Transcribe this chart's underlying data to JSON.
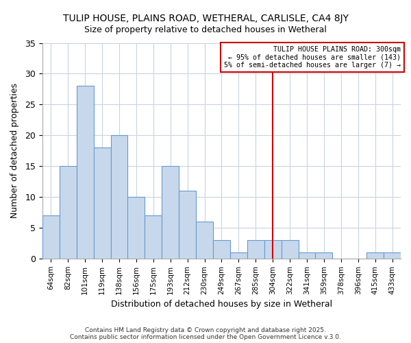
{
  "title": "TULIP HOUSE, PLAINS ROAD, WETHERAL, CARLISLE, CA4 8JY",
  "subtitle": "Size of property relative to detached houses in Wetheral",
  "xlabel": "Distribution of detached houses by size in Wetheral",
  "ylabel": "Number of detached properties",
  "bar_labels": [
    "64sqm",
    "82sqm",
    "101sqm",
    "119sqm",
    "138sqm",
    "156sqm",
    "175sqm",
    "193sqm",
    "212sqm",
    "230sqm",
    "249sqm",
    "267sqm",
    "285sqm",
    "304sqm",
    "322sqm",
    "341sqm",
    "359sqm",
    "378sqm",
    "396sqm",
    "415sqm",
    "433sqm"
  ],
  "bar_values": [
    7,
    15,
    28,
    18,
    20,
    10,
    7,
    15,
    11,
    6,
    3,
    1,
    3,
    3,
    3,
    1,
    1,
    0,
    0,
    1,
    1
  ],
  "bar_color": "#c8d8ec",
  "bar_edgecolor": "#6699cc",
  "bg_color": "#ffffff",
  "plot_bg_color": "#ffffff",
  "grid_color": "#c8d4e0",
  "vline_x_index": 13,
  "vline_color": "#cc0000",
  "annotation_text": "TULIP HOUSE PLAINS ROAD: 300sqm\n← 95% of detached houses are smaller (143)\n5% of semi-detached houses are larger (7) →",
  "annotation_box_color": "#ffffff",
  "annotation_border_color": "#cc0000",
  "ylim": [
    0,
    35
  ],
  "yticks": [
    0,
    5,
    10,
    15,
    20,
    25,
    30,
    35
  ],
  "footer1": "Contains HM Land Registry data © Crown copyright and database right 2025.",
  "footer2": "Contains public sector information licensed under the Open Government Licence v.3.0."
}
